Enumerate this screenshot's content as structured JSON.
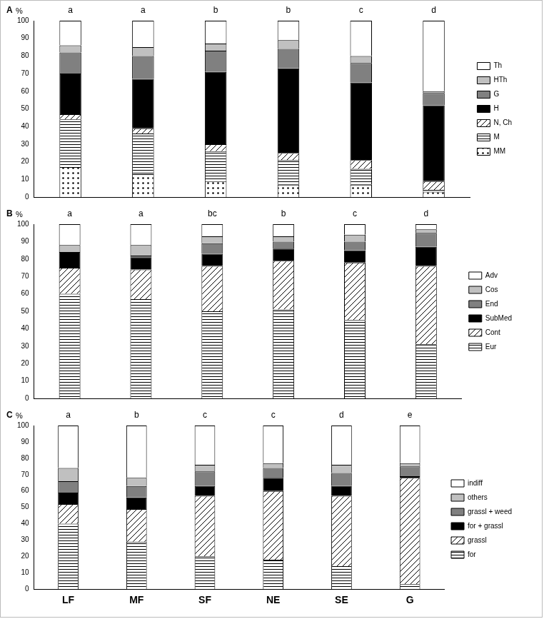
{
  "chart_data": [
    {
      "type": "bar",
      "title": "A",
      "y_label": "%",
      "stacked": true,
      "grid": false,
      "legend": "right",
      "tick_labels": "y",
      "categories": [
        "LF",
        "MF",
        "SF",
        "NE",
        "SE",
        "G"
      ],
      "annotations": [
        "a",
        "a",
        "b",
        "b",
        "c",
        "d"
      ],
      "ylim": [
        0,
        100
      ],
      "yticks": [
        0,
        10,
        20,
        30,
        40,
        50,
        60,
        70,
        80,
        90,
        100
      ],
      "series": [
        {
          "name": "MM",
          "color": "#ffffff",
          "values": [
            17,
            13,
            9,
            7,
            7,
            3
          ]
        },
        {
          "name": "M",
          "color": "#ffffff",
          "values": [
            27,
            23,
            17,
            14,
            9,
            1
          ]
        },
        {
          "name": "N, Ch",
          "color": "#ffffff",
          "values": [
            3,
            3,
            4,
            4,
            5,
            5
          ]
        },
        {
          "name": "H",
          "color": "#000000",
          "values": [
            23,
            28,
            41,
            48,
            44,
            43
          ]
        },
        {
          "name": "G",
          "color": "#808080",
          "values": [
            12,
            13,
            12,
            11,
            11,
            7
          ]
        },
        {
          "name": "HTh",
          "color": "#c0c0c0",
          "values": [
            4,
            5,
            4,
            5,
            4,
            1
          ]
        },
        {
          "name": "Th",
          "color": "#ffffff",
          "values": [
            14,
            15,
            13,
            11,
            20,
            40
          ]
        }
      ]
    },
    {
      "type": "bar",
      "title": "B",
      "y_label": "%",
      "stacked": true,
      "grid": false,
      "legend": "right",
      "tick_labels": "y",
      "categories": [
        "LF",
        "MF",
        "SF",
        "NE",
        "SE",
        "G"
      ],
      "annotations": [
        "a",
        "a",
        "bc",
        "b",
        "c",
        "d"
      ],
      "ylim": [
        0,
        100
      ],
      "yticks": [
        0,
        10,
        20,
        30,
        40,
        50,
        60,
        70,
        80,
        90,
        100
      ],
      "series": [
        {
          "name": "Eur",
          "color": "#ffffff",
          "values": [
            60,
            57,
            50,
            51,
            45,
            31
          ]
        },
        {
          "name": "Cont",
          "color": "#ffffff",
          "values": [
            15,
            17,
            26,
            28,
            33,
            45
          ]
        },
        {
          "name": "SubMed",
          "color": "#000000",
          "values": [
            9,
            7,
            7,
            7,
            7,
            11
          ]
        },
        {
          "name": "End",
          "color": "#808080",
          "values": [
            0,
            1,
            6,
            4,
            5,
            8
          ]
        },
        {
          "name": "Cos",
          "color": "#c0c0c0",
          "values": [
            4,
            6,
            4,
            3,
            4,
            2
          ]
        },
        {
          "name": "Adv",
          "color": "#ffffff",
          "values": [
            12,
            12,
            7,
            7,
            6,
            3
          ]
        }
      ]
    },
    {
      "type": "bar",
      "title": "C",
      "y_label": "%",
      "stacked": true,
      "grid": false,
      "legend": "right",
      "categories": [
        "LF",
        "MF",
        "SF",
        "NE",
        "SE",
        "G"
      ],
      "annotations": [
        "a",
        "b",
        "c",
        "c",
        "d",
        "e"
      ],
      "ylim": [
        0,
        100
      ],
      "yticks": [
        0,
        10,
        20,
        30,
        40,
        50,
        60,
        70,
        80,
        90,
        100
      ],
      "series": [
        {
          "name": "for",
          "color": "#ffffff",
          "values": [
            40,
            29,
            20,
            18,
            14,
            3
          ]
        },
        {
          "name": "grassl",
          "color": "#ffffff",
          "values": [
            12,
            20,
            37,
            42,
            43,
            65
          ]
        },
        {
          "name": "for + grassl",
          "color": "#000000",
          "values": [
            7,
            7,
            6,
            8,
            6,
            1
          ]
        },
        {
          "name": "grassl + weed",
          "color": "#808080",
          "values": [
            7,
            7,
            9,
            6,
            8,
            6
          ]
        },
        {
          "name": "others",
          "color": "#c0c0c0",
          "values": [
            8,
            5,
            4,
            3,
            5,
            2
          ]
        },
        {
          "name": "indiff",
          "color": "#ffffff",
          "values": [
            26,
            32,
            24,
            23,
            24,
            23
          ]
        }
      ]
    }
  ]
}
